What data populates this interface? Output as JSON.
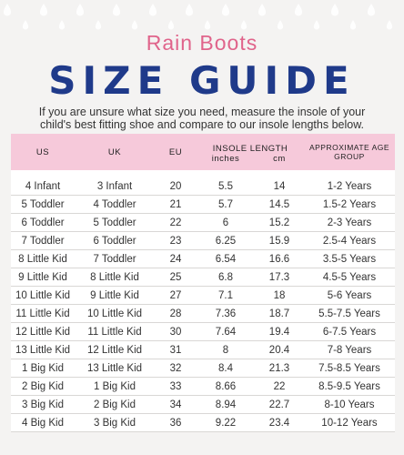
{
  "header": {
    "subtitle": "Rain Boots",
    "title": "SIZE GUIDE",
    "intro": "If you are unsure what size you need, measure the insole of your child's best fitting shoe and compare to our insole lengths below."
  },
  "table": {
    "headers": {
      "us": "US",
      "uk": "UK",
      "eu": "EU",
      "insole": "INSOLE LENGTH",
      "inches": "inches",
      "cm": "cm",
      "age": "APPROXIMATE AGE GROUP"
    },
    "rows": [
      {
        "us": "4 Infant",
        "uk": "3 Infant",
        "eu": "20",
        "inches": "5.5",
        "cm": "14",
        "age": "1-2 Years"
      },
      {
        "us": "5 Toddler",
        "uk": "4 Toddler",
        "eu": "21",
        "inches": "5.7",
        "cm": "14.5",
        "age": "1.5-2 Years"
      },
      {
        "us": "6 Toddler",
        "uk": "5 Toddler",
        "eu": "22",
        "inches": "6",
        "cm": "15.2",
        "age": "2-3 Years"
      },
      {
        "us": "7 Toddler",
        "uk": "6 Toddler",
        "eu": "23",
        "inches": "6.25",
        "cm": "15.9",
        "age": "2.5-4 Years"
      },
      {
        "us": "8 Little Kid",
        "uk": "7 Toddler",
        "eu": "24",
        "inches": "6.54",
        "cm": "16.6",
        "age": "3.5-5 Years"
      },
      {
        "us": "9 Little Kid",
        "uk": "8 Little Kid",
        "eu": "25",
        "inches": "6.8",
        "cm": "17.3",
        "age": "4.5-5 Years"
      },
      {
        "us": "10 Little Kid",
        "uk": "9 Little Kid",
        "eu": "27",
        "inches": "7.1",
        "cm": "18",
        "age": "5-6 Years"
      },
      {
        "us": "11 Little Kid",
        "uk": "10 Little Kid",
        "eu": "28",
        "inches": "7.36",
        "cm": "18.7",
        "age": "5.5-7.5 Years"
      },
      {
        "us": "12 Little Kid",
        "uk": "11 Little Kid",
        "eu": "30",
        "inches": "7.64",
        "cm": "19.4",
        "age": "6-7.5 Years"
      },
      {
        "us": "13 Little Kid",
        "uk": "12 Little Kid",
        "eu": "31",
        "inches": "8",
        "cm": "20.4",
        "age": "7-8 Years"
      },
      {
        "us": "1 Big Kid",
        "uk": "13 Little Kid",
        "eu": "32",
        "inches": "8.4",
        "cm": "21.3",
        "age": "7.5-8.5 Years"
      },
      {
        "us": "2 Big Kid",
        "uk": "1 Big Kid",
        "eu": "33",
        "inches": "8.66",
        "cm": "22",
        "age": "8.5-9.5 Years"
      },
      {
        "us": "3 Big Kid",
        "uk": "2 Big Kid",
        "eu": "34",
        "inches": "8.94",
        "cm": "22.7",
        "age": "8-10 Years"
      },
      {
        "us": "4 Big Kid",
        "uk": "3 Big Kid",
        "eu": "36",
        "inches": "9.22",
        "cm": "23.4",
        "age": "10-12 Years"
      }
    ]
  },
  "colors": {
    "accent_pink": "#e0648b",
    "title_blue": "#1f3a8a",
    "header_band": "#f6c9da",
    "background": "#f4f3f2"
  },
  "decoration": {
    "pattern_icon": "raindrop-icon"
  }
}
